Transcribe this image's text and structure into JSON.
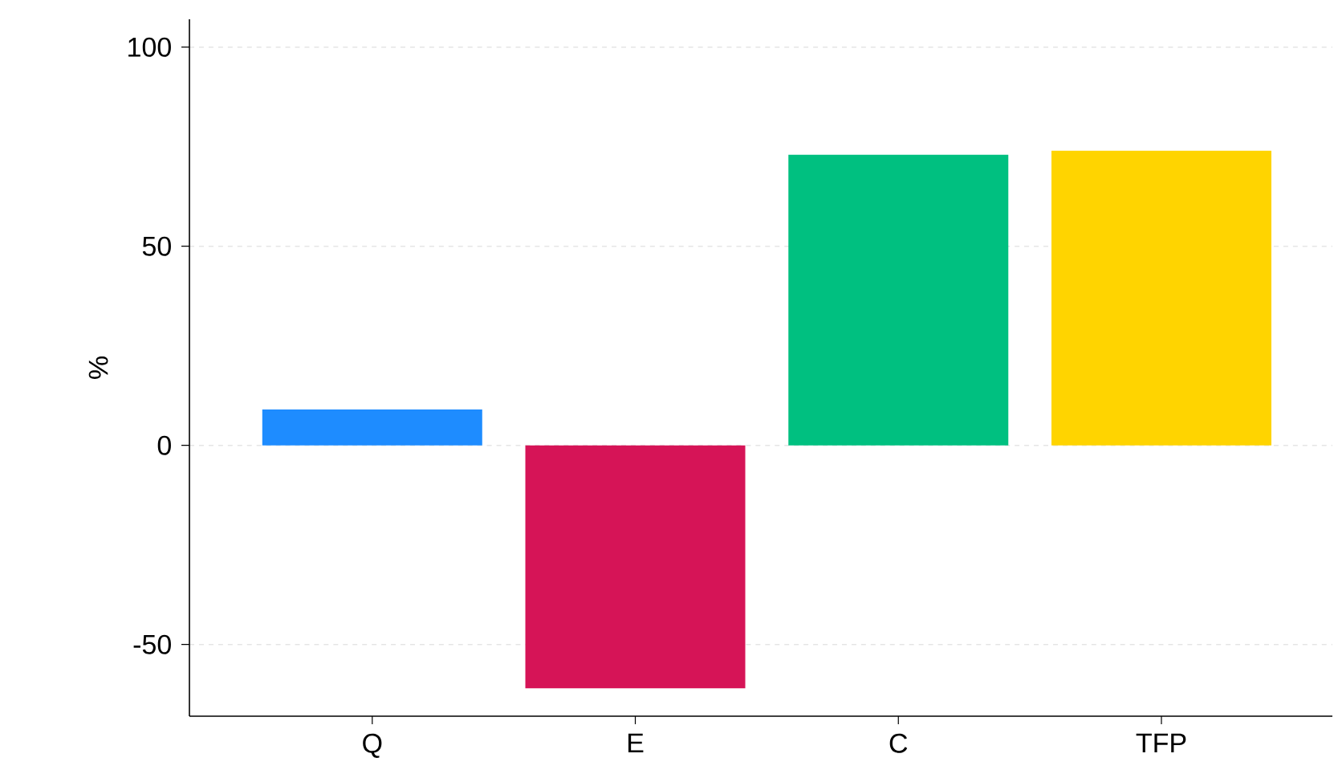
{
  "chart_data": {
    "type": "bar",
    "ylabel": "%",
    "categories": [
      "Q",
      "E",
      "C",
      "TFP"
    ],
    "values": [
      9,
      -61,
      73,
      74
    ],
    "colors": [
      "#1e8cff",
      "#d61457",
      "#00c080",
      "#ffd400"
    ],
    "ylim": [
      -68,
      107
    ],
    "yticks": [
      -50,
      0,
      50,
      100
    ],
    "grid": "y"
  }
}
